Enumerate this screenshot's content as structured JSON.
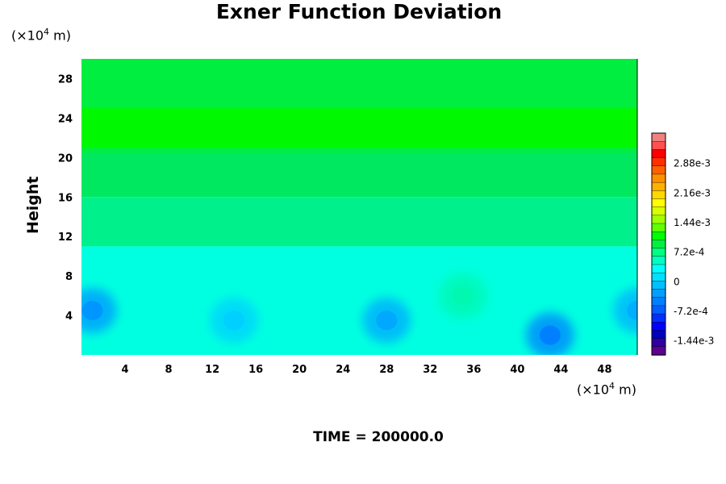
{
  "chart_data": {
    "type": "heatmap",
    "title": "Exner Function Deviation",
    "ylabel": "Height",
    "y_unit_prefix": "(×10",
    "y_unit_exp": "4",
    "y_unit_suffix": " m)",
    "x_unit_prefix": "(×10",
    "x_unit_exp": "4",
    "x_unit_suffix": " m)",
    "footer": "TIME = 200000.0",
    "xlim": [
      0,
      51
    ],
    "ylim": [
      0,
      30
    ],
    "x_ticks": [
      4,
      8,
      12,
      16,
      20,
      24,
      28,
      32,
      36,
      40,
      44,
      48
    ],
    "y_ticks": [
      4,
      8,
      12,
      16,
      20,
      24,
      28
    ],
    "colorbar": {
      "range": [
        -0.0018,
        0.0036
      ],
      "tick_labels": [
        "2.88e-3",
        "2.16e-3",
        "1.44e-3",
        "7.2e-4",
        "0",
        "-7.2e-4",
        "-1.44e-3"
      ],
      "tick_values": [
        0.00288,
        0.00216,
        0.00144,
        0.00072,
        0,
        -0.00072,
        -0.00144
      ]
    },
    "layers": [
      {
        "y_bottom": 20,
        "y_top": 30,
        "value": 0.00095,
        "color": "#00ee40"
      },
      {
        "y_bottom": 21,
        "y_top": 25,
        "value": 0.00115,
        "color": "#00f800"
      },
      {
        "y_bottom": 16,
        "y_top": 20.5,
        "value": 0.00075,
        "color": "#00e860"
      },
      {
        "y_bottom": 11,
        "y_top": 16,
        "value": 0.00045,
        "color": "#00f08c"
      },
      {
        "y_bottom": 0,
        "y_top": 11,
        "value": 5e-05,
        "color": "#00ffe0"
      }
    ],
    "features": [
      {
        "x": 1,
        "y": 4.5,
        "value": -0.00075,
        "color": "#0096ff"
      },
      {
        "x": 14,
        "y": 3.5,
        "value": -0.0003,
        "color": "#00d0ff"
      },
      {
        "x": 28,
        "y": 3.5,
        "value": -0.0006,
        "color": "#00a8ff"
      },
      {
        "x": 43,
        "y": 2,
        "value": -0.0009,
        "color": "#0080ff"
      },
      {
        "x": 51,
        "y": 4.5,
        "value": -0.0005,
        "color": "#00b0ff"
      },
      {
        "x": 35,
        "y": 6,
        "value": 0.00025,
        "color": "#00f8b0"
      }
    ]
  }
}
